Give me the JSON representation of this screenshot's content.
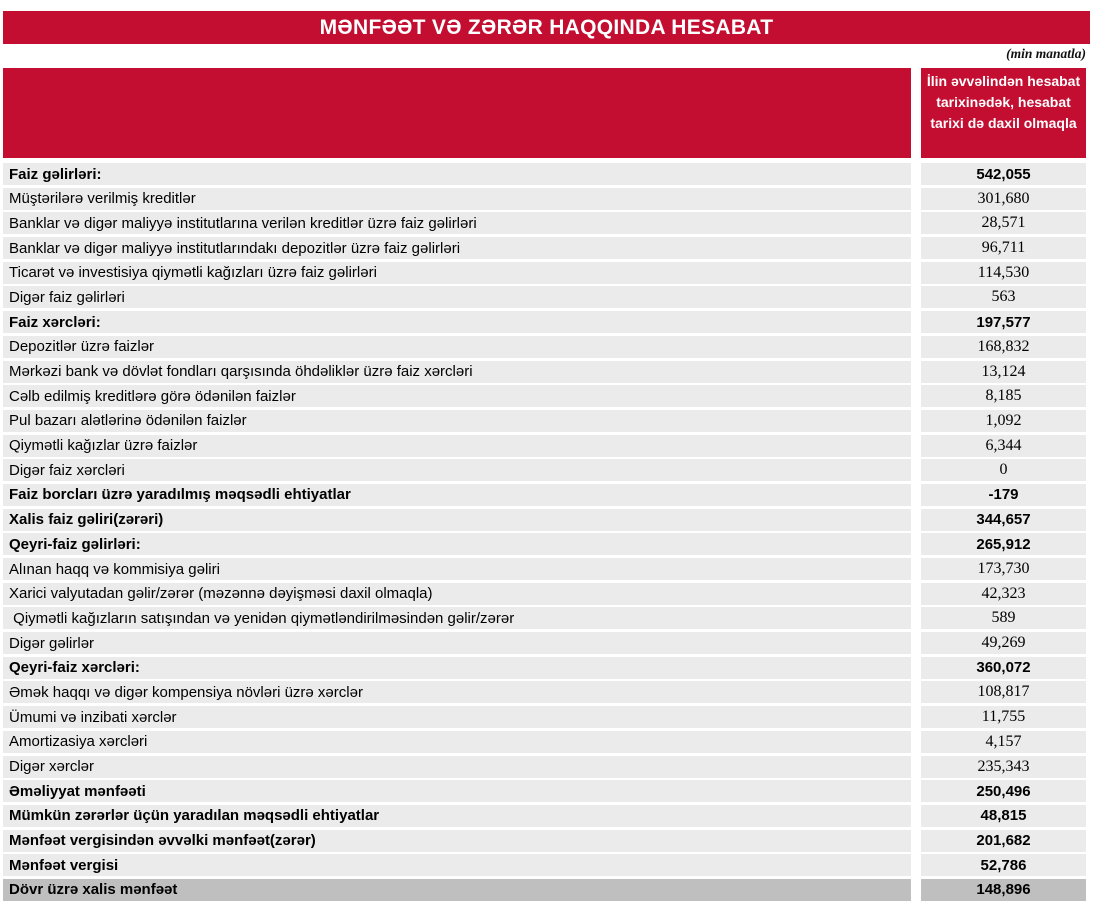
{
  "title": "MƏNFƏƏT VƏ ZƏRƏR HAQQINDA HESABAT",
  "unit_note": "(min manatla)",
  "colors": {
    "accent_red": "#c30d31",
    "row_bg": "#ebebeb",
    "total_row_bg": "#bfbfbf"
  },
  "table": {
    "value_column_header": "İlin əvvəlindən hesabat tarixinədək, hesabat tarixi də daxil olmaqla",
    "rows": [
      {
        "label": "Faiz gəlirləri:",
        "value": "542,055",
        "bold": true,
        "total": false
      },
      {
        "label": "Müştərilərə verilmiş kreditlər",
        "value": "301,680",
        "bold": false,
        "total": false
      },
      {
        "label": "Banklar və digər maliyyə institutlarına verilən kreditlər üzrə faiz gəlirləri",
        "value": "28,571",
        "bold": false,
        "total": false
      },
      {
        "label": "Banklar və digər maliyyə institutlarındakı depozitlər üzrə faiz gəlirləri",
        "value": "96,711",
        "bold": false,
        "total": false
      },
      {
        "label": "Ticarət və investisiya qiymətli kağızları üzrə faiz gəlirləri",
        "value": "114,530",
        "bold": false,
        "total": false
      },
      {
        "label": "Digər faiz gəlirləri",
        "value": "563",
        "bold": false,
        "total": false
      },
      {
        "label": "Faiz xərcləri:",
        "value": "197,577",
        "bold": true,
        "total": false
      },
      {
        "label": "Depozitlər üzrə faizlər",
        "value": "168,832",
        "bold": false,
        "total": false
      },
      {
        "label": "Mərkəzi bank və dövlət fondları qarşısında öhdəliklər üzrə faiz xərcləri",
        "value": "13,124",
        "bold": false,
        "total": false
      },
      {
        "label": "Cəlb edilmiş kreditlərə görə ödənilən faizlər",
        "value": "8,185",
        "bold": false,
        "total": false
      },
      {
        "label": "Pul bazarı alətlərinə ödənilən faizlər",
        "value": "1,092",
        "bold": false,
        "total": false
      },
      {
        "label": "Qiymətli kağızlar üzrə faizlər",
        "value": "6,344",
        "bold": false,
        "total": false
      },
      {
        "label": "Digər faiz xərcləri",
        "value": "0",
        "bold": false,
        "total": false
      },
      {
        "label": "Faiz borcları üzrə yaradılmış məqsədli ehtiyatlar",
        "value": "-179",
        "bold": true,
        "total": false
      },
      {
        "label": "Xalis faiz gəliri(zərəri)",
        "value": "344,657",
        "bold": true,
        "total": false
      },
      {
        "label": "Qeyri-faiz gəlirləri:",
        "value": "265,912",
        "bold": true,
        "total": false
      },
      {
        "label": "Alınan haqq və kommisiya gəliri",
        "value": "173,730",
        "bold": false,
        "total": false
      },
      {
        "label": "Xarici valyutadan gəlir/zərər (məzənnə dəyişməsi daxil olmaqla)",
        "value": "42,323",
        "bold": false,
        "total": false
      },
      {
        "label": " Qiymətli kağızların satışından və yenidən qiymətləndirilməsindən gəlir/zərər",
        "value": "589",
        "bold": false,
        "total": false
      },
      {
        "label": "Digər gəlirlər",
        "value": "49,269",
        "bold": false,
        "total": false
      },
      {
        "label": "Qeyri-faiz xərcləri:",
        "value": "360,072",
        "bold": true,
        "total": false
      },
      {
        "label": "Əmək haqqı və digər kompensiya növləri üzrə xərclər",
        "value": "108,817",
        "bold": false,
        "total": false
      },
      {
        "label": "Ümumi və inzibati xərclər",
        "value": "11,755",
        "bold": false,
        "total": false
      },
      {
        "label": "Amortizasiya xərcləri",
        "value": "4,157",
        "bold": false,
        "total": false
      },
      {
        "label": "Digər xərclər",
        "value": "235,343",
        "bold": false,
        "total": false
      },
      {
        "label": "Əməliyyat mənfəəti",
        "value": "250,496",
        "bold": true,
        "total": false
      },
      {
        "label": "Mümkün zərərlər üçün yaradılan məqsədli ehtiyatlar",
        "value": "48,815",
        "bold": true,
        "total": false
      },
      {
        "label": "Mənfəət vergisindən əvvəlki mənfəət(zərər)",
        "value": "201,682",
        "bold": true,
        "total": false
      },
      {
        "label": "Mənfəət vergisi",
        "value": "52,786",
        "bold": true,
        "total": false
      },
      {
        "label": "Dövr üzrə xalis mənfəət",
        "value": "148,896",
        "bold": true,
        "total": true
      }
    ]
  }
}
